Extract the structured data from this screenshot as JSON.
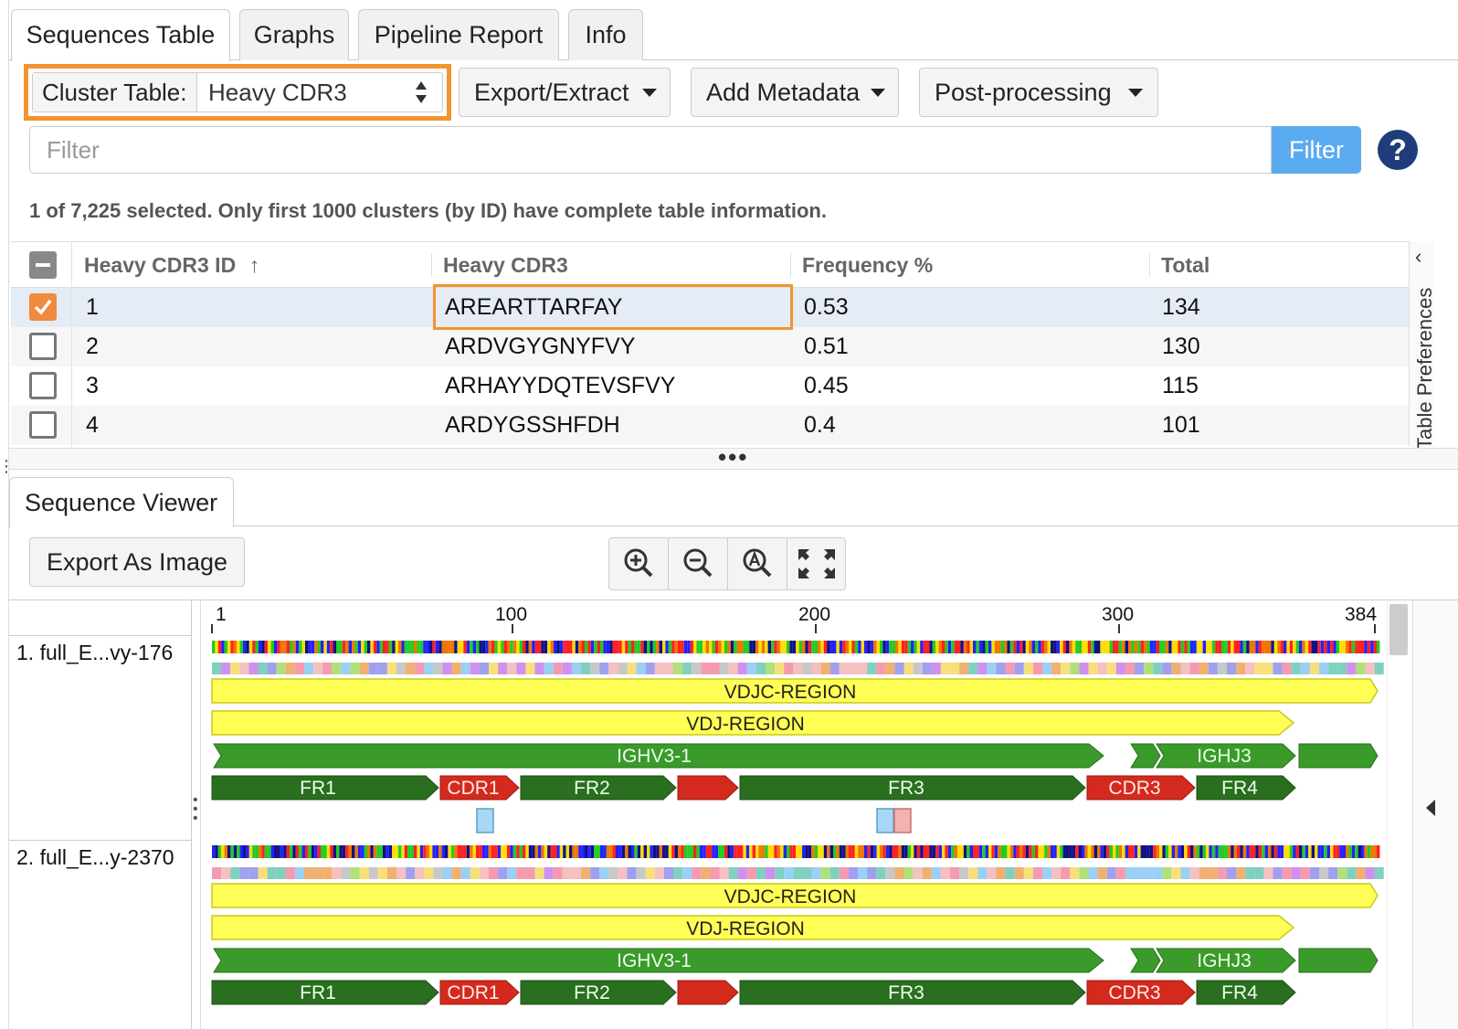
{
  "tabs": [
    {
      "label": "Sequences Table",
      "active": true
    },
    {
      "label": "Graphs",
      "active": false
    },
    {
      "label": "Pipeline Report",
      "active": false
    },
    {
      "label": "Info",
      "active": false
    }
  ],
  "toolbar": {
    "cluster_label": "Cluster Table:",
    "cluster_value": "Heavy CDR3",
    "export_extract": "Export/Extract",
    "add_metadata": "Add Metadata",
    "post_processing": "Post-processing"
  },
  "filter": {
    "placeholder": "Filter",
    "button": "Filter",
    "help": "?"
  },
  "status_text": "1 of 7,225 selected. Only first 1000 clusters (by ID) have complete table information.",
  "table": {
    "columns": [
      "Heavy CDR3 ID",
      "Heavy CDR3",
      "Frequency %",
      "Total"
    ],
    "sort_indicator": "↑",
    "rows": [
      {
        "checked": true,
        "id": "1",
        "cdr3": "AREARTTARFAY",
        "freq": "0.53",
        "total": "134"
      },
      {
        "checked": false,
        "id": "2",
        "cdr3": "ARDVGYGNYFVY",
        "freq": "0.51",
        "total": "130"
      },
      {
        "checked": false,
        "id": "3",
        "cdr3": "ARHAYYDQTEVSFVY",
        "freq": "0.45",
        "total": "115"
      },
      {
        "checked": false,
        "id": "4",
        "cdr3": "ARDYGSSHFDH",
        "freq": "0.4",
        "total": "101"
      }
    ]
  },
  "table_preferences_label": "Table Preferences",
  "splitter_dots": "•••",
  "sequence_viewer": {
    "tab": "Sequence Viewer",
    "export_button": "Export As Image",
    "zoom_icons": [
      "zoom-in-icon",
      "zoom-out-icon",
      "zoom-auto-icon",
      "expand-icon"
    ],
    "ruler": {
      "ticks": [
        "1",
        "100",
        "200",
        "300",
        "384"
      ],
      "max": 384
    },
    "sequences": [
      {
        "label": "1. full_E...vy-176"
      },
      {
        "label": "2. full_E...y-2370"
      }
    ],
    "annotations": {
      "vdjc": "VDJC-REGION",
      "vdj": "VDJ-REGION",
      "ighv": "IGHV3-1",
      "ighj": "IGHJ3",
      "fr1": "FR1",
      "cdr1": "CDR1",
      "fr2": "FR2",
      "fr3": "FR3",
      "cdr3": "CDR3",
      "fr4": "FR4"
    },
    "colors": {
      "yellow": "#ffff55",
      "green": "#3a9a2a",
      "darkgreen": "#2a6e1f",
      "red": "#d42a1e",
      "highlight": "#f0952f",
      "accent_blue": "#5aaaf0"
    }
  }
}
